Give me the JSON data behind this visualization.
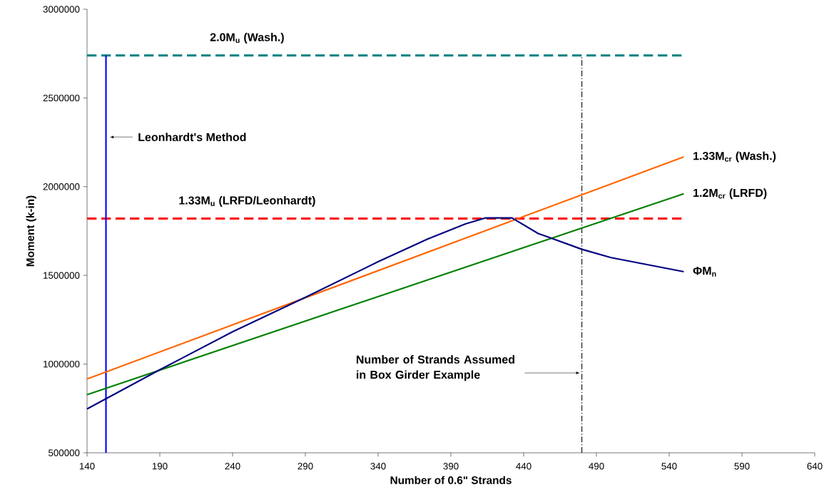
{
  "chart_data": {
    "type": "line",
    "xlabel": "Number of 0.6\" Strands",
    "ylabel": "Moment (k-in)",
    "xlim": [
      140,
      640
    ],
    "ylim": [
      500000,
      3000000
    ],
    "xticks": [
      140,
      190,
      240,
      290,
      340,
      390,
      440,
      490,
      540,
      590,
      640
    ],
    "yticks": [
      500000,
      1000000,
      1500000,
      2000000,
      2500000,
      3000000
    ],
    "series": [
      {
        "name": "1.33M$_{cr}$ (Wash.)",
        "color": "#ff6600",
        "x": [
          140,
          550
        ],
        "values": [
          916000,
          2168000
        ]
      },
      {
        "name": "1.2M$_{cr}$ (LRFD)",
        "color": "#008000",
        "x": [
          140,
          550
        ],
        "values": [
          828000,
          1960000
        ]
      },
      {
        "name": "ΦM$_{n}$",
        "color": "#000080",
        "x": [
          140,
          190,
          240,
          290,
          340,
          374,
          400,
          414,
          432,
          450,
          480,
          500,
          550
        ],
        "values": [
          747000,
          968000,
          1182000,
          1376000,
          1577000,
          1705000,
          1790000,
          1824000,
          1824000,
          1736000,
          1647000,
          1600000,
          1521000
        ]
      }
    ],
    "ref_lines": [
      {
        "axis": "y",
        "value": 2740000,
        "label": "2.0M$_{u}$ (Wash.)",
        "color": "#008080",
        "line_style": "dashed"
      },
      {
        "axis": "y",
        "value": 1820000,
        "label": "1.33M$_{u}$ (LRFD/Leonhardt)",
        "color": "#ff0000",
        "line_style": "dashed"
      },
      {
        "axis": "x",
        "value": 153,
        "color": "#0000ff",
        "line_style": "solid"
      },
      {
        "axis": "x",
        "value": 480,
        "color": "#000000",
        "line_style": "dotted"
      }
    ],
    "annotations": [
      {
        "text": "Leonhardt's Method",
        "x": 153,
        "y": 2280000
      },
      {
        "text": "Number of Strands Assumed in Box Girder Example",
        "x": 480,
        "y": 950000
      }
    ]
  }
}
